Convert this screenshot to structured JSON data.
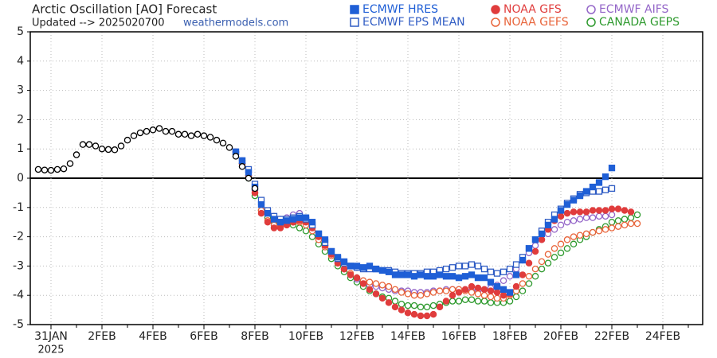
{
  "chart_data": {
    "type": "scatter",
    "title": "Arctic Oscillation [AO] Forecast",
    "subtitle": "Updated --> 2025020700",
    "source": "weathermodels.com",
    "x_year_label": "2025",
    "categories": [
      null,
      null,
      "31JAN",
      null,
      null,
      null,
      null,
      null,
      null,
      null,
      "2FEB",
      null,
      null,
      null,
      null,
      null,
      null,
      null,
      "4FEB",
      null,
      null,
      null,
      null,
      null,
      null,
      null,
      "6FEB",
      null,
      null,
      null,
      null,
      null,
      null,
      null,
      "8FEB",
      null,
      null,
      null,
      null,
      null,
      null,
      null,
      "10FEB",
      null,
      null,
      null,
      null,
      null,
      null,
      null,
      "12FEB",
      null,
      null,
      null,
      null,
      null,
      null,
      null,
      "14FEB",
      null,
      null,
      null,
      null,
      null,
      null,
      null,
      "16FEB",
      null,
      null,
      null,
      null,
      null,
      null,
      null,
      "18FEB",
      null,
      null,
      null,
      null,
      null,
      null,
      null,
      "20FEB",
      null,
      null,
      null,
      null,
      null,
      null,
      null,
      "22FEB",
      null,
      null,
      null,
      null,
      null,
      null,
      null,
      "24FEB",
      null,
      null,
      null,
      null,
      null,
      null
    ],
    "ylim": [
      -5,
      5
    ],
    "yticks": [
      -5,
      -4,
      -3,
      -2,
      -1,
      0,
      1,
      2,
      3,
      4,
      5
    ],
    "grid": true,
    "series": [
      {
        "color": "#000000",
        "marker": "circle",
        "filled": false,
        "values": [
          0.3,
          0.28,
          0.27,
          0.3,
          0.32,
          0.5,
          0.8,
          1.15,
          1.15,
          1.1,
          1.0,
          0.98,
          0.97,
          1.1,
          1.3,
          1.45,
          1.55,
          1.6,
          1.65,
          1.7,
          1.6,
          1.6,
          1.5,
          1.5,
          1.45,
          1.5,
          1.45,
          1.4,
          1.3,
          1.2,
          1.05,
          0.75,
          0.4,
          0.0,
          -0.35,
          null,
          null,
          null,
          null,
          null,
          null,
          null,
          null,
          null,
          null,
          null,
          null,
          null,
          null,
          null,
          null,
          null,
          null,
          null,
          null,
          null,
          null,
          null,
          null,
          null,
          null,
          null,
          null,
          null,
          null,
          null,
          null,
          null,
          null,
          null,
          null,
          null,
          null,
          null,
          null,
          null,
          null,
          null,
          null,
          null,
          null,
          null,
          null,
          null,
          null,
          null,
          null,
          null,
          null,
          null,
          null,
          null,
          null,
          null,
          null,
          null,
          null,
          null,
          null,
          null,
          null,
          null,
          null,
          null,
          null
        ]
      },
      {
        "name": "ECMWF HRES",
        "color": "#1f5fd6",
        "marker": "square",
        "filled": true,
        "values": [
          null,
          null,
          null,
          null,
          null,
          null,
          null,
          null,
          null,
          null,
          null,
          null,
          null,
          null,
          null,
          null,
          null,
          null,
          null,
          null,
          null,
          null,
          null,
          null,
          null,
          null,
          null,
          null,
          null,
          null,
          null,
          0.9,
          0.6,
          0.2,
          -0.3,
          -0.9,
          -1.2,
          -1.4,
          -1.5,
          -1.45,
          -1.4,
          -1.35,
          -1.35,
          -1.5,
          -1.9,
          -2.1,
          -2.5,
          -2.7,
          -2.85,
          -3.0,
          -3.0,
          -3.05,
          -3.0,
          -3.1,
          -3.15,
          -3.2,
          -3.3,
          -3.3,
          -3.3,
          -3.35,
          -3.3,
          -3.35,
          -3.35,
          -3.3,
          -3.35,
          -3.35,
          -3.4,
          -3.35,
          -3.3,
          -3.4,
          -3.4,
          -3.55,
          -3.7,
          -3.8,
          -3.9,
          -3.3,
          -2.8,
          -2.4,
          -2.1,
          -1.9,
          -1.6,
          -1.4,
          -1.1,
          -0.9,
          -0.75,
          -0.6,
          -0.45,
          -0.3,
          -0.15,
          0.05,
          0.35,
          null,
          null,
          null,
          null,
          null,
          null,
          null,
          null,
          null,
          null,
          null,
          null,
          null,
          null
        ]
      },
      {
        "name": "ECMWF EPS MEAN",
        "color": "#2f5cc4",
        "marker": "square",
        "filled": false,
        "values": [
          null,
          null,
          null,
          null,
          null,
          null,
          null,
          null,
          null,
          null,
          null,
          null,
          null,
          null,
          null,
          null,
          null,
          null,
          null,
          null,
          null,
          null,
          null,
          null,
          null,
          null,
          null,
          null,
          null,
          null,
          null,
          0.9,
          0.6,
          0.3,
          -0.2,
          -0.75,
          -1.1,
          -1.3,
          -1.4,
          -1.4,
          -1.35,
          -1.3,
          -1.4,
          -1.6,
          -1.9,
          -2.2,
          -2.5,
          -2.75,
          -2.9,
          -3.0,
          -3.05,
          -3.1,
          -3.1,
          -3.1,
          -3.15,
          -3.15,
          -3.2,
          -3.25,
          -3.25,
          -3.25,
          -3.25,
          -3.2,
          -3.2,
          -3.15,
          -3.1,
          -3.05,
          -3.0,
          -3.0,
          -2.95,
          -3.0,
          -3.1,
          -3.2,
          -3.25,
          -3.2,
          -3.1,
          -2.95,
          -2.7,
          -2.4,
          -2.1,
          -1.8,
          -1.5,
          -1.25,
          -1.05,
          -0.85,
          -0.7,
          -0.55,
          -0.5,
          -0.45,
          -0.45,
          -0.4,
          -0.35,
          null,
          null,
          null,
          null,
          null,
          null,
          null,
          null,
          null,
          null,
          null,
          null,
          null,
          null
        ]
      },
      {
        "name": "NOAA GFS",
        "color": "#e03c3c",
        "marker": "circle",
        "filled": true,
        "values": [
          null,
          null,
          null,
          null,
          null,
          null,
          null,
          null,
          null,
          null,
          null,
          null,
          null,
          null,
          null,
          null,
          null,
          null,
          null,
          null,
          null,
          null,
          null,
          null,
          null,
          null,
          null,
          null,
          null,
          null,
          null,
          0.9,
          0.5,
          0.1,
          -0.5,
          -1.2,
          -1.5,
          -1.7,
          -1.7,
          -1.6,
          -1.5,
          -1.45,
          -1.5,
          -1.7,
          -2.0,
          -2.3,
          -2.6,
          -2.9,
          -3.1,
          -3.3,
          -3.4,
          -3.6,
          -3.8,
          -3.95,
          -4.1,
          -4.25,
          -4.4,
          -4.5,
          -4.6,
          -4.65,
          -4.7,
          -4.7,
          -4.65,
          -4.4,
          -4.2,
          -4.0,
          -3.9,
          -3.8,
          -3.7,
          -3.75,
          -3.8,
          -3.85,
          -3.9,
          -4.0,
          -3.95,
          -3.7,
          -3.3,
          -2.9,
          -2.5,
          -2.1,
          -1.75,
          -1.45,
          -1.3,
          -1.2,
          -1.15,
          -1.15,
          -1.15,
          -1.1,
          -1.1,
          -1.1,
          -1.05,
          -1.05,
          -1.1,
          -1.15,
          null,
          null,
          null,
          null,
          null,
          null,
          null,
          null,
          null,
          null,
          null
        ]
      },
      {
        "name": "NOAA GEFS",
        "color": "#e8643a",
        "marker": "circle",
        "filled": false,
        "values": [
          null,
          null,
          null,
          null,
          null,
          null,
          null,
          null,
          null,
          null,
          null,
          null,
          null,
          null,
          null,
          null,
          null,
          null,
          null,
          null,
          null,
          null,
          null,
          null,
          null,
          null,
          null,
          null,
          null,
          null,
          null,
          0.9,
          0.5,
          0.1,
          -0.5,
          -1.1,
          -1.45,
          -1.6,
          -1.65,
          -1.6,
          -1.5,
          -1.5,
          -1.6,
          -1.8,
          -2.1,
          -2.35,
          -2.65,
          -2.9,
          -3.1,
          -3.25,
          -3.4,
          -3.5,
          -3.55,
          -3.6,
          -3.65,
          -3.7,
          -3.8,
          -3.9,
          -3.95,
          -4.0,
          -4.0,
          -3.95,
          -3.9,
          -3.85,
          -3.85,
          -3.8,
          -3.8,
          -3.85,
          -3.9,
          -3.95,
          -4.0,
          -4.05,
          -4.1,
          -4.1,
          -4.0,
          -3.85,
          -3.6,
          -3.35,
          -3.1,
          -2.85,
          -2.6,
          -2.4,
          -2.25,
          -2.1,
          -2.0,
          -1.95,
          -1.9,
          -1.85,
          -1.8,
          -1.75,
          -1.7,
          -1.65,
          -1.6,
          -1.55,
          -1.55,
          null,
          null,
          null,
          null,
          null,
          null,
          null,
          null,
          null,
          null
        ]
      },
      {
        "name": "ECMWF AIFS",
        "color": "#9466c8",
        "marker": "circle",
        "filled": false,
        "values": [
          null,
          null,
          null,
          null,
          null,
          null,
          null,
          null,
          null,
          null,
          null,
          null,
          null,
          null,
          null,
          null,
          null,
          null,
          null,
          null,
          null,
          null,
          null,
          null,
          null,
          null,
          null,
          null,
          null,
          null,
          null,
          0.9,
          0.6,
          0.2,
          -0.4,
          -0.9,
          -1.15,
          -1.3,
          -1.4,
          -1.35,
          -1.25,
          -1.2,
          -1.35,
          -1.6,
          -1.95,
          -2.3,
          -2.6,
          -2.85,
          -3.1,
          -3.3,
          -3.45,
          -3.55,
          -3.65,
          -3.7,
          -3.75,
          -3.8,
          -3.85,
          -3.85,
          -3.85,
          -3.9,
          -3.9,
          -3.9,
          -3.85,
          -3.85,
          -3.8,
          -3.8,
          -3.8,
          -3.8,
          -3.85,
          -3.85,
          -3.8,
          -3.75,
          -3.65,
          -3.5,
          -3.35,
          -3.1,
          -2.8,
          -2.55,
          -2.3,
          -2.1,
          -1.9,
          -1.75,
          -1.6,
          -1.5,
          -1.45,
          -1.4,
          -1.35,
          -1.35,
          -1.3,
          -1.3,
          -1.25,
          null,
          null,
          null,
          null,
          null,
          null,
          null,
          null,
          null,
          null,
          null,
          null,
          null,
          null
        ]
      },
      {
        "name": "CANADA GEPS",
        "color": "#2e9a2e",
        "marker": "circle",
        "filled": false,
        "values": [
          null,
          null,
          null,
          null,
          null,
          null,
          null,
          null,
          null,
          null,
          null,
          null,
          null,
          null,
          null,
          null,
          null,
          null,
          null,
          null,
          null,
          null,
          null,
          null,
          null,
          null,
          null,
          null,
          null,
          null,
          null,
          0.9,
          0.5,
          0.0,
          -0.6,
          -1.1,
          -1.35,
          -1.5,
          -1.55,
          -1.55,
          -1.6,
          -1.7,
          -1.8,
          -2.0,
          -2.25,
          -2.5,
          -2.75,
          -3.0,
          -3.2,
          -3.4,
          -3.55,
          -3.7,
          -3.85,
          -3.95,
          -4.05,
          -4.1,
          -4.2,
          -4.3,
          -4.35,
          -4.35,
          -4.4,
          -4.4,
          -4.35,
          -4.3,
          -4.25,
          -4.2,
          -4.2,
          -4.15,
          -4.15,
          -4.2,
          -4.2,
          -4.25,
          -4.25,
          -4.25,
          -4.2,
          -4.05,
          -3.85,
          -3.6,
          -3.35,
          -3.1,
          -2.9,
          -2.7,
          -2.55,
          -2.4,
          -2.25,
          -2.1,
          -2.0,
          -1.85,
          -1.75,
          -1.65,
          -1.5,
          -1.45,
          -1.4,
          -1.35,
          -1.25,
          null,
          null,
          null,
          null,
          null,
          null,
          null,
          null,
          null,
          null
        ]
      }
    ]
  }
}
